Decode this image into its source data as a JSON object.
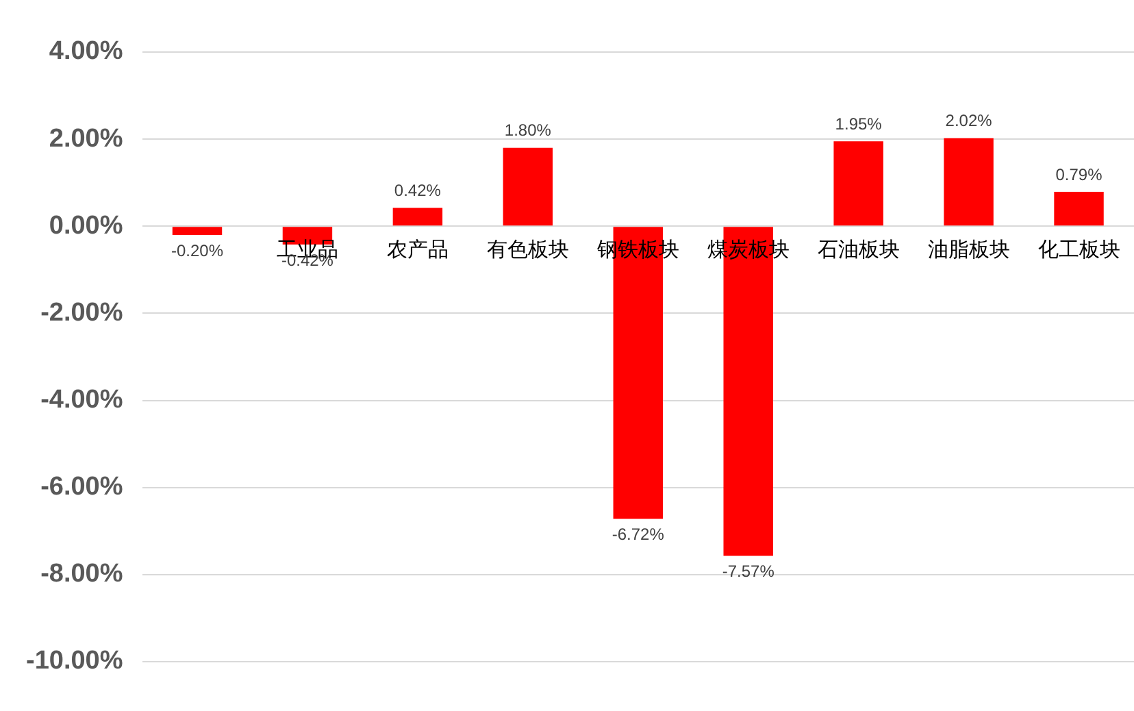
{
  "chart_data": {
    "type": "bar",
    "categories": [
      null,
      "工业品",
      "农产品",
      "有色板块",
      "钢铁板块",
      "煤炭板块",
      "石油板块",
      "油脂板块",
      "化工板块"
    ],
    "values": [
      -0.2,
      -0.42,
      0.42,
      1.8,
      -6.72,
      -7.57,
      1.95,
      2.02,
      0.79
    ],
    "value_labels": [
      "-0.20%",
      "-0.42%",
      "0.42%",
      "1.80%",
      "-6.72%",
      "-7.57%",
      "1.95%",
      "2.02%",
      "0.79%"
    ],
    "color": "#ff0000",
    "ylim": [
      -10,
      4
    ],
    "yticks": [
      {
        "value": -10,
        "label": "-10.00%"
      },
      {
        "value": -8,
        "label": "-8.00%"
      },
      {
        "value": -6,
        "label": "-6.00%"
      },
      {
        "value": -4,
        "label": "-4.00%"
      },
      {
        "value": -2,
        "label": "-2.00%"
      },
      {
        "value": 0,
        "label": "0.00%"
      },
      {
        "value": 2,
        "label": "2.00%"
      },
      {
        "value": 4,
        "label": "4.00%"
      }
    ],
    "grid": "y",
    "legend": false
  }
}
